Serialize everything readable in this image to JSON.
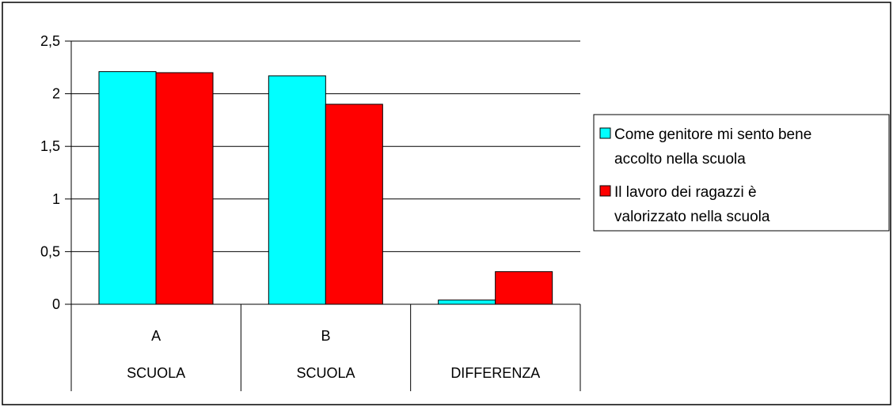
{
  "chart_data": {
    "type": "bar",
    "categories": [
      {
        "line1": "A",
        "line2": "SCUOLA"
      },
      {
        "line1": "B",
        "line2": "SCUOLA"
      },
      {
        "line1": "",
        "line2": "DIFFERENZA"
      }
    ],
    "series": [
      {
        "name_lines": [
          "Come genitore mi sento bene",
          "accolto nella scuola"
        ],
        "color": "#00FFFF",
        "values": [
          2.21,
          2.17,
          0.04
        ]
      },
      {
        "name_lines": [
          "Il lavoro dei ragazzi è",
          "valorizzato nella scuola"
        ],
        "color": "#FF0000",
        "values": [
          2.2,
          1.9,
          0.31
        ]
      }
    ],
    "ylim": [
      0,
      2.5
    ],
    "yticks": [
      {
        "value": 0,
        "label": "0"
      },
      {
        "value": 0.5,
        "label": "0,5"
      },
      {
        "value": 1,
        "label": "1"
      },
      {
        "value": 1.5,
        "label": "1,5"
      },
      {
        "value": 2,
        "label": "2"
      },
      {
        "value": 2.5,
        "label": "2,5"
      }
    ],
    "grid": true,
    "legend": "right"
  }
}
